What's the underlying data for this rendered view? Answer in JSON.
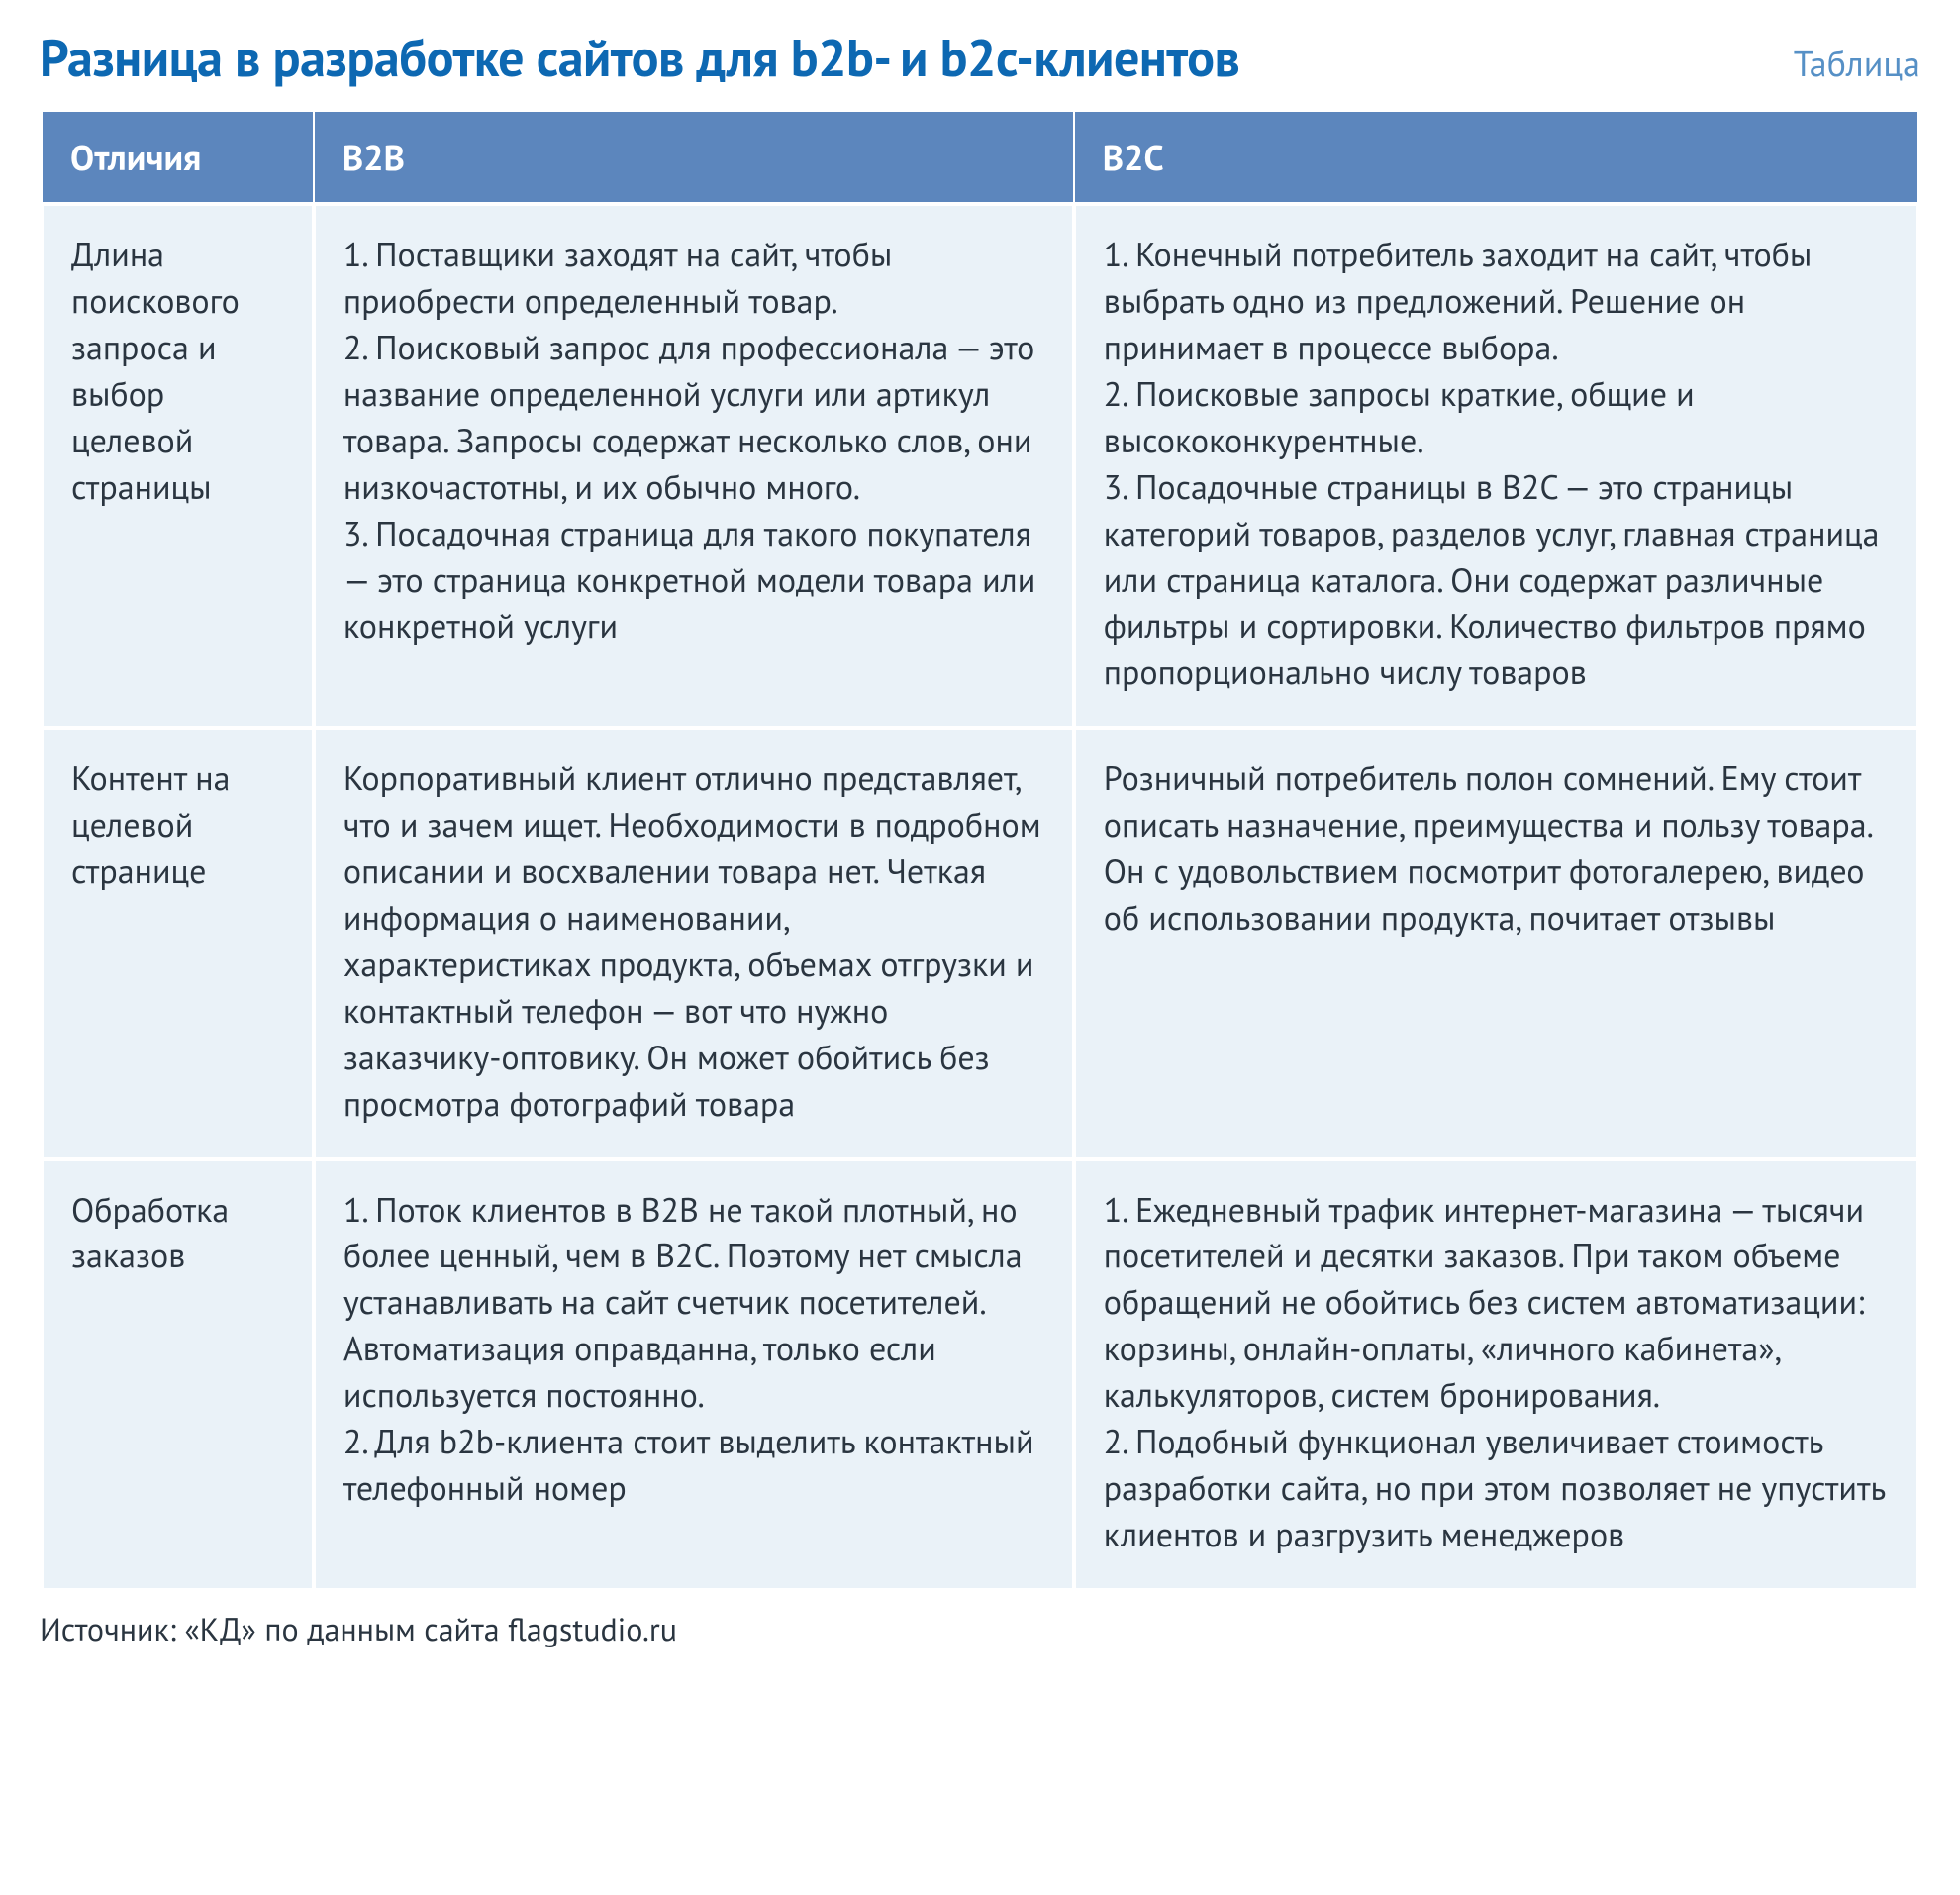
{
  "title": "Разница в разработке сайтов для b2b- и b2с-клиентов",
  "table_label": "Таблица",
  "colors": {
    "title": "#0d68b2",
    "table_label": "#5690c6",
    "header_bg": "#5c86bd",
    "header_text": "#ffffff",
    "cell_bg": "#eaf2f8",
    "cell_text": "#2a3540",
    "border": "#ffffff",
    "background": "#ffffff"
  },
  "typography": {
    "title_fontsize": 52,
    "label_fontsize": 36,
    "header_fontsize": 36,
    "cell_fontsize": 34,
    "source_fontsize": 32,
    "line_height": 1.38
  },
  "table": {
    "type": "table",
    "column_widths_pct": [
      14.5,
      40.5,
      45
    ],
    "columns": [
      "Отличия",
      "B2B",
      "B2C"
    ],
    "rows": [
      {
        "label": "Длина поискового запроса и выбор целевой страницы",
        "b2b": "1. Поставщики заходят на сайт, чтобы приобрести определенный товар.\n2. Поисковый запрос для профессионала — это название определенной услуги или артикул товара. Запросы содержат несколько слов, они низкочастотны, и их обычно много.\n3. Посадочная страница для такого покупателя — это страница конкретной модели товара или конкретной услуги",
        "b2c": "1. Конечный потребитель заходит на сайт, чтобы выбрать одно из предложений. Решение он принимает в процессе выбора.\n2. Поисковые запросы краткие, общие и высококонкурентные.\n3. Посадочные страницы в B2C — это страницы категорий товаров, разделов услуг, главная страница или страница каталога. Они содержат различные фильтры и сортировки. Количество фильтров прямо пропорционально числу товаров"
      },
      {
        "label": "Контент на целевой странице",
        "b2b": "Корпоративный клиент отлично представляет, что и зачем ищет. Необходимости в подробном описании и восхвалении товара нет. Четкая информация о наименовании, характеристиках продукта, объемах отгрузки и контактный телефон — вот что нужно заказчику-оптовику. Он может обойтись без просмотра фотографий товара",
        "b2c": "Розничный потребитель полон сомнений. Ему стоит описать назначение, преимущества и пользу товара. Он с удовольствием посмотрит фотогалерею, видео об использовании продукта, почитает отзывы"
      },
      {
        "label": "Обработка заказов",
        "b2b": "1. Поток клиентов в B2B не такой плотный, но более ценный, чем в B2C. Поэтому нет смысла устанавливать на сайт счетчик посетителей. Автоматизация оправданна, только если используется постоянно.\n2. Для b2b-клиента стоит выделить контактный телефонный номер",
        "b2c": "1. Ежедневный трафик интернет-магазина — тысячи посетителей и десятки заказов. При таком объеме обращений не обойтись без систем автоматизации: корзины, онлайн-оплаты, «личного кабинета», калькуляторов, систем бронирования.\n2. Подобный функционал увеличивает стоимость разработки сайта, но при этом позволяет не упустить клиентов и разгрузить менеджеров"
      }
    ]
  },
  "source": "Источник: «КД» по данным сайта flagstudio.ru"
}
